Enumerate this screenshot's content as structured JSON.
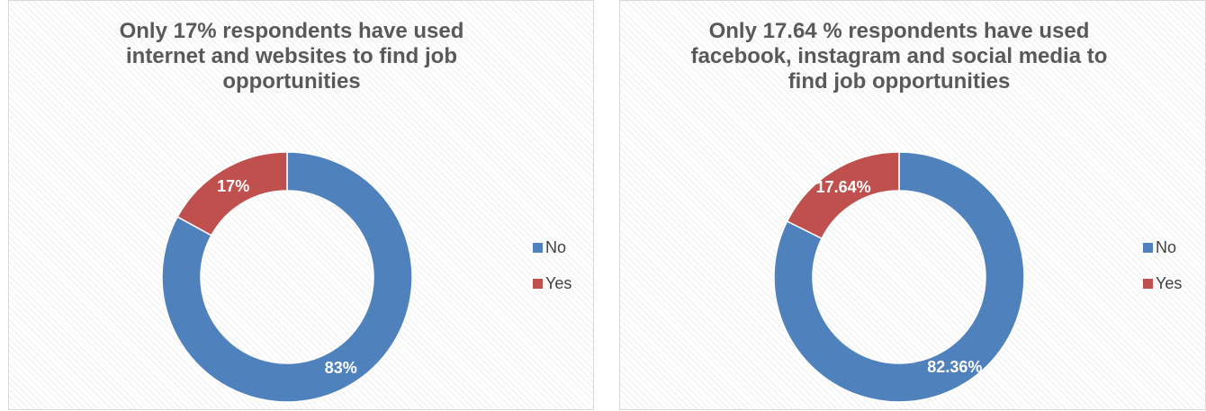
{
  "chart_data": [
    {
      "type": "donut",
      "title": "Only 17% respondents have used internet and websites to find job opportunities",
      "categories": [
        "No",
        "Yes"
      ],
      "values": [
        83,
        17
      ],
      "data_labels": [
        "83%",
        "17%"
      ],
      "colors": [
        "#4f81bd",
        "#c0504d"
      ],
      "legend": {
        "position": "right",
        "items": [
          "No",
          "Yes"
        ]
      }
    },
    {
      "type": "donut",
      "title": "Only 17.64 % respondents have used facebook, instagram and social media to find job opportunities",
      "categories": [
        "No",
        "Yes"
      ],
      "values": [
        82.36,
        17.64
      ],
      "data_labels": [
        "82.36%",
        "17.64%"
      ],
      "colors": [
        "#4f81bd",
        "#c0504d"
      ],
      "legend": {
        "position": "right",
        "items": [
          "No",
          "Yes"
        ]
      }
    }
  ]
}
